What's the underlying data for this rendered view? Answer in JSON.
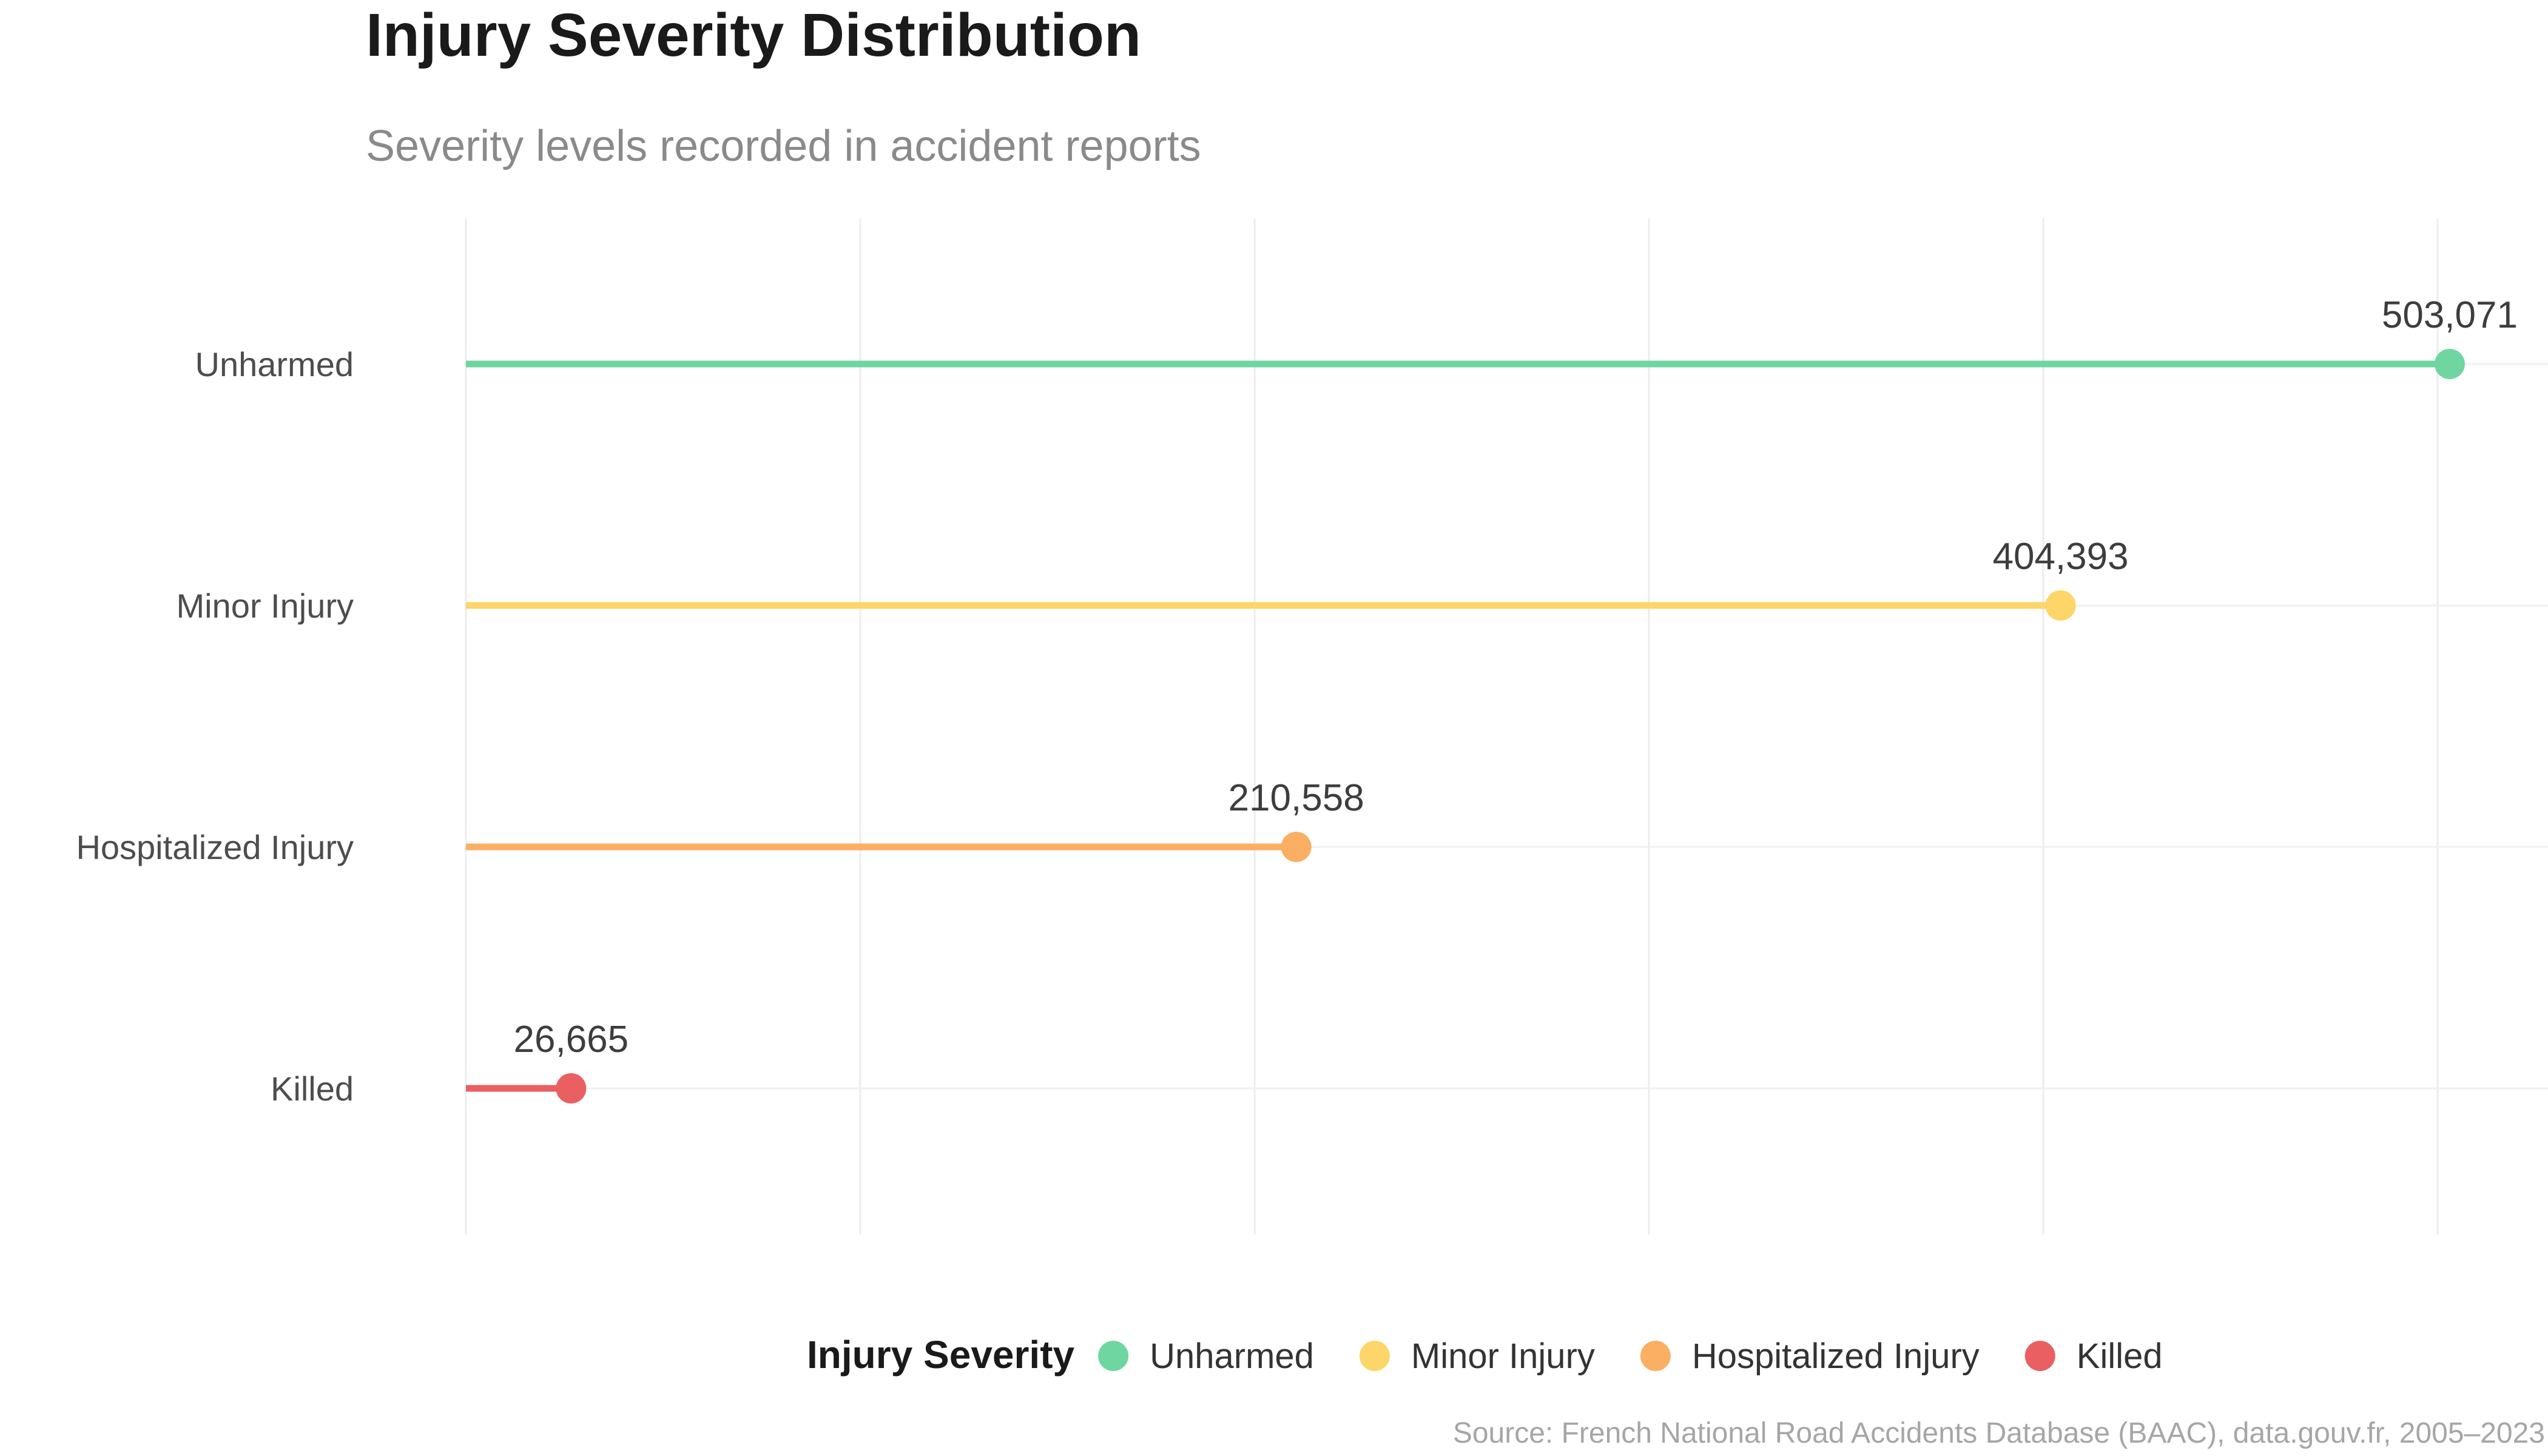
{
  "chart_data": {
    "type": "lollipop",
    "title": "Injury Severity Distribution",
    "subtitle": "Severity levels recorded in accident reports",
    "xlabel": "",
    "ylabel": "",
    "xlim": [
      0,
      530000
    ],
    "x_grid_step": 100000,
    "grid": true,
    "categories": [
      "Unharmed",
      "Minor Injury",
      "Hospitalized Injury",
      "Killed"
    ],
    "values": [
      503071,
      404393,
      210558,
      26665
    ],
    "value_labels": [
      "503,071",
      "404,393",
      "210,558",
      "26,665"
    ],
    "colors": [
      "#6fd6a1",
      "#fdd568",
      "#fbaf62",
      "#ea5f62"
    ],
    "legend": {
      "title": "Injury Severity",
      "position": "bottom",
      "entries": [
        "Unharmed",
        "Minor Injury",
        "Hospitalized Injury",
        "Killed"
      ]
    },
    "caption": "Source: French National Road Accidents Database (BAAC), data.gouv.fr, 2005–2023"
  }
}
